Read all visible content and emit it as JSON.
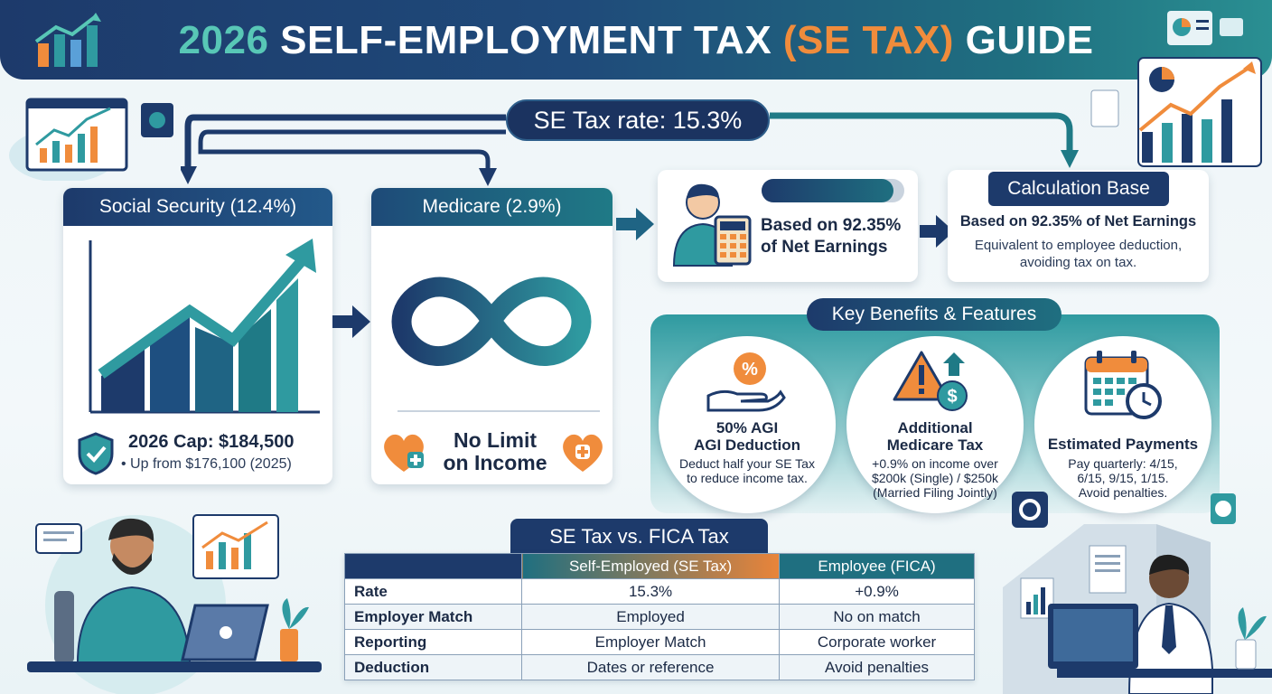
{
  "header": {
    "title_year": "2026",
    "title_part1": "SELF-EMPLOYMENT TAX",
    "title_paren": "(SE TAX)",
    "title_part2": "GUIDE"
  },
  "rate_pill": "SE Tax rate: 15.3%",
  "social_security": {
    "title": "Social Security (12.4%)",
    "cap": "2026 Cap: $184,500",
    "cap_sub": "• Up from $176,100 (2025)"
  },
  "medicare": {
    "title": "Medicare (2.9%)",
    "no_limit_line1": "No Limit",
    "no_limit_line2": "on Income"
  },
  "net_earnings": {
    "line1": "Based on 92.35%",
    "line2": "of Net Earnings",
    "progress": 0.9235
  },
  "calculation_base": {
    "title": "Calculation Base",
    "line1": "Based on 92.35% of Net Earnings",
    "line2": "Equivalent to employee deduction,",
    "line3": "avoiding tax on tax."
  },
  "key_benefits": {
    "title": "Key Benefits & Features",
    "items": [
      {
        "title1": "50% AGI",
        "title2": "AGI Deduction",
        "desc1": "Deduct half your SE Tax",
        "desc2": "to reduce income tax.",
        "desc3": ""
      },
      {
        "title1": "Additional",
        "title2": "Medicare Tax",
        "desc1": "+0.9% on income over",
        "desc2": "$200k (Single) / $250k",
        "desc3": "(Married Filing Jointly)"
      },
      {
        "title1": "",
        "title2": "Estimated Payments",
        "desc1": "Pay quarterly: 4/15,",
        "desc2": "6/15, 9/15, 1/15.",
        "desc3": "Avoid penalties."
      }
    ]
  },
  "comparison": {
    "title": "SE Tax vs. FICA Tax",
    "col_self": "Self-Employed (SE Tax)",
    "col_emp": "Employee (FICA)",
    "rows": [
      {
        "label": "Rate",
        "self": "15.3%",
        "emp": "+0.9%"
      },
      {
        "label": "Employer Match",
        "self": "Employed",
        "emp": "No on match"
      },
      {
        "label": "Reporting",
        "self": "Employer Match",
        "emp": "Corporate worker"
      },
      {
        "label": "Deduction",
        "self": "Dates or reference",
        "emp": "Avoid penalties"
      }
    ]
  },
  "colors": {
    "navy": "#1d3a6b",
    "teal": "#1f7a86",
    "orange": "#f08c3c",
    "mint": "#58c7b6"
  }
}
